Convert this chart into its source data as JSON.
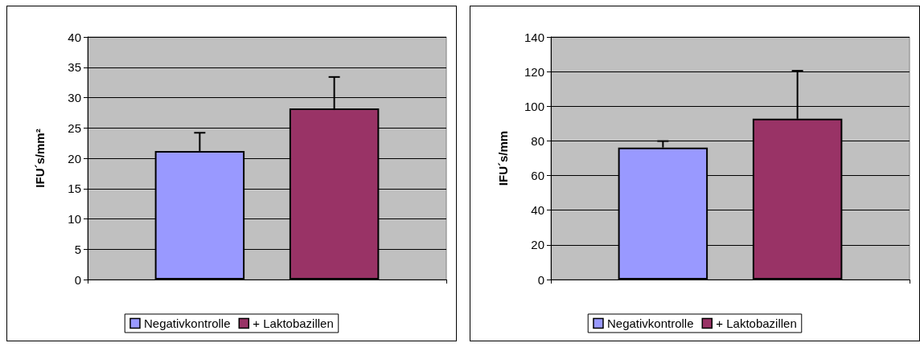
{
  "chart_data": [
    {
      "type": "bar",
      "ylabel": "IFU´s/mm²",
      "categories": [
        null
      ],
      "series": [
        {
          "name": "Negativkontrolle",
          "color": "#9999ff",
          "values": [
            21.2
          ],
          "errors": [
            [
              21.2,
              24.2
            ]
          ]
        },
        {
          "name": "+ Laktobazillen",
          "color": "#993366",
          "values": [
            28.2
          ],
          "errors": [
            [
              28.2,
              33.4
            ]
          ]
        }
      ],
      "ylim": [
        0,
        40
      ],
      "yticks": [
        0,
        5,
        10,
        15,
        20,
        25,
        30,
        35,
        40
      ],
      "grid": "y",
      "legend": "bottom"
    },
    {
      "type": "bar",
      "ylabel": "IFU´s/mm",
      "categories": [
        null
      ],
      "series": [
        {
          "name": "Negativkontrolle",
          "color": "#9999ff",
          "values": [
            76.2
          ],
          "errors": [
            [
              76.2,
              79.9
            ]
          ]
        },
        {
          "name": "+ Laktobazillen",
          "color": "#993366",
          "values": [
            92.8
          ],
          "errors": [
            [
              92.8,
              120.5
            ]
          ]
        }
      ],
      "ylim": [
        0,
        140
      ],
      "yticks": [
        0,
        20,
        40,
        60,
        80,
        100,
        120,
        140
      ],
      "grid": "y",
      "legend": "bottom"
    }
  ]
}
